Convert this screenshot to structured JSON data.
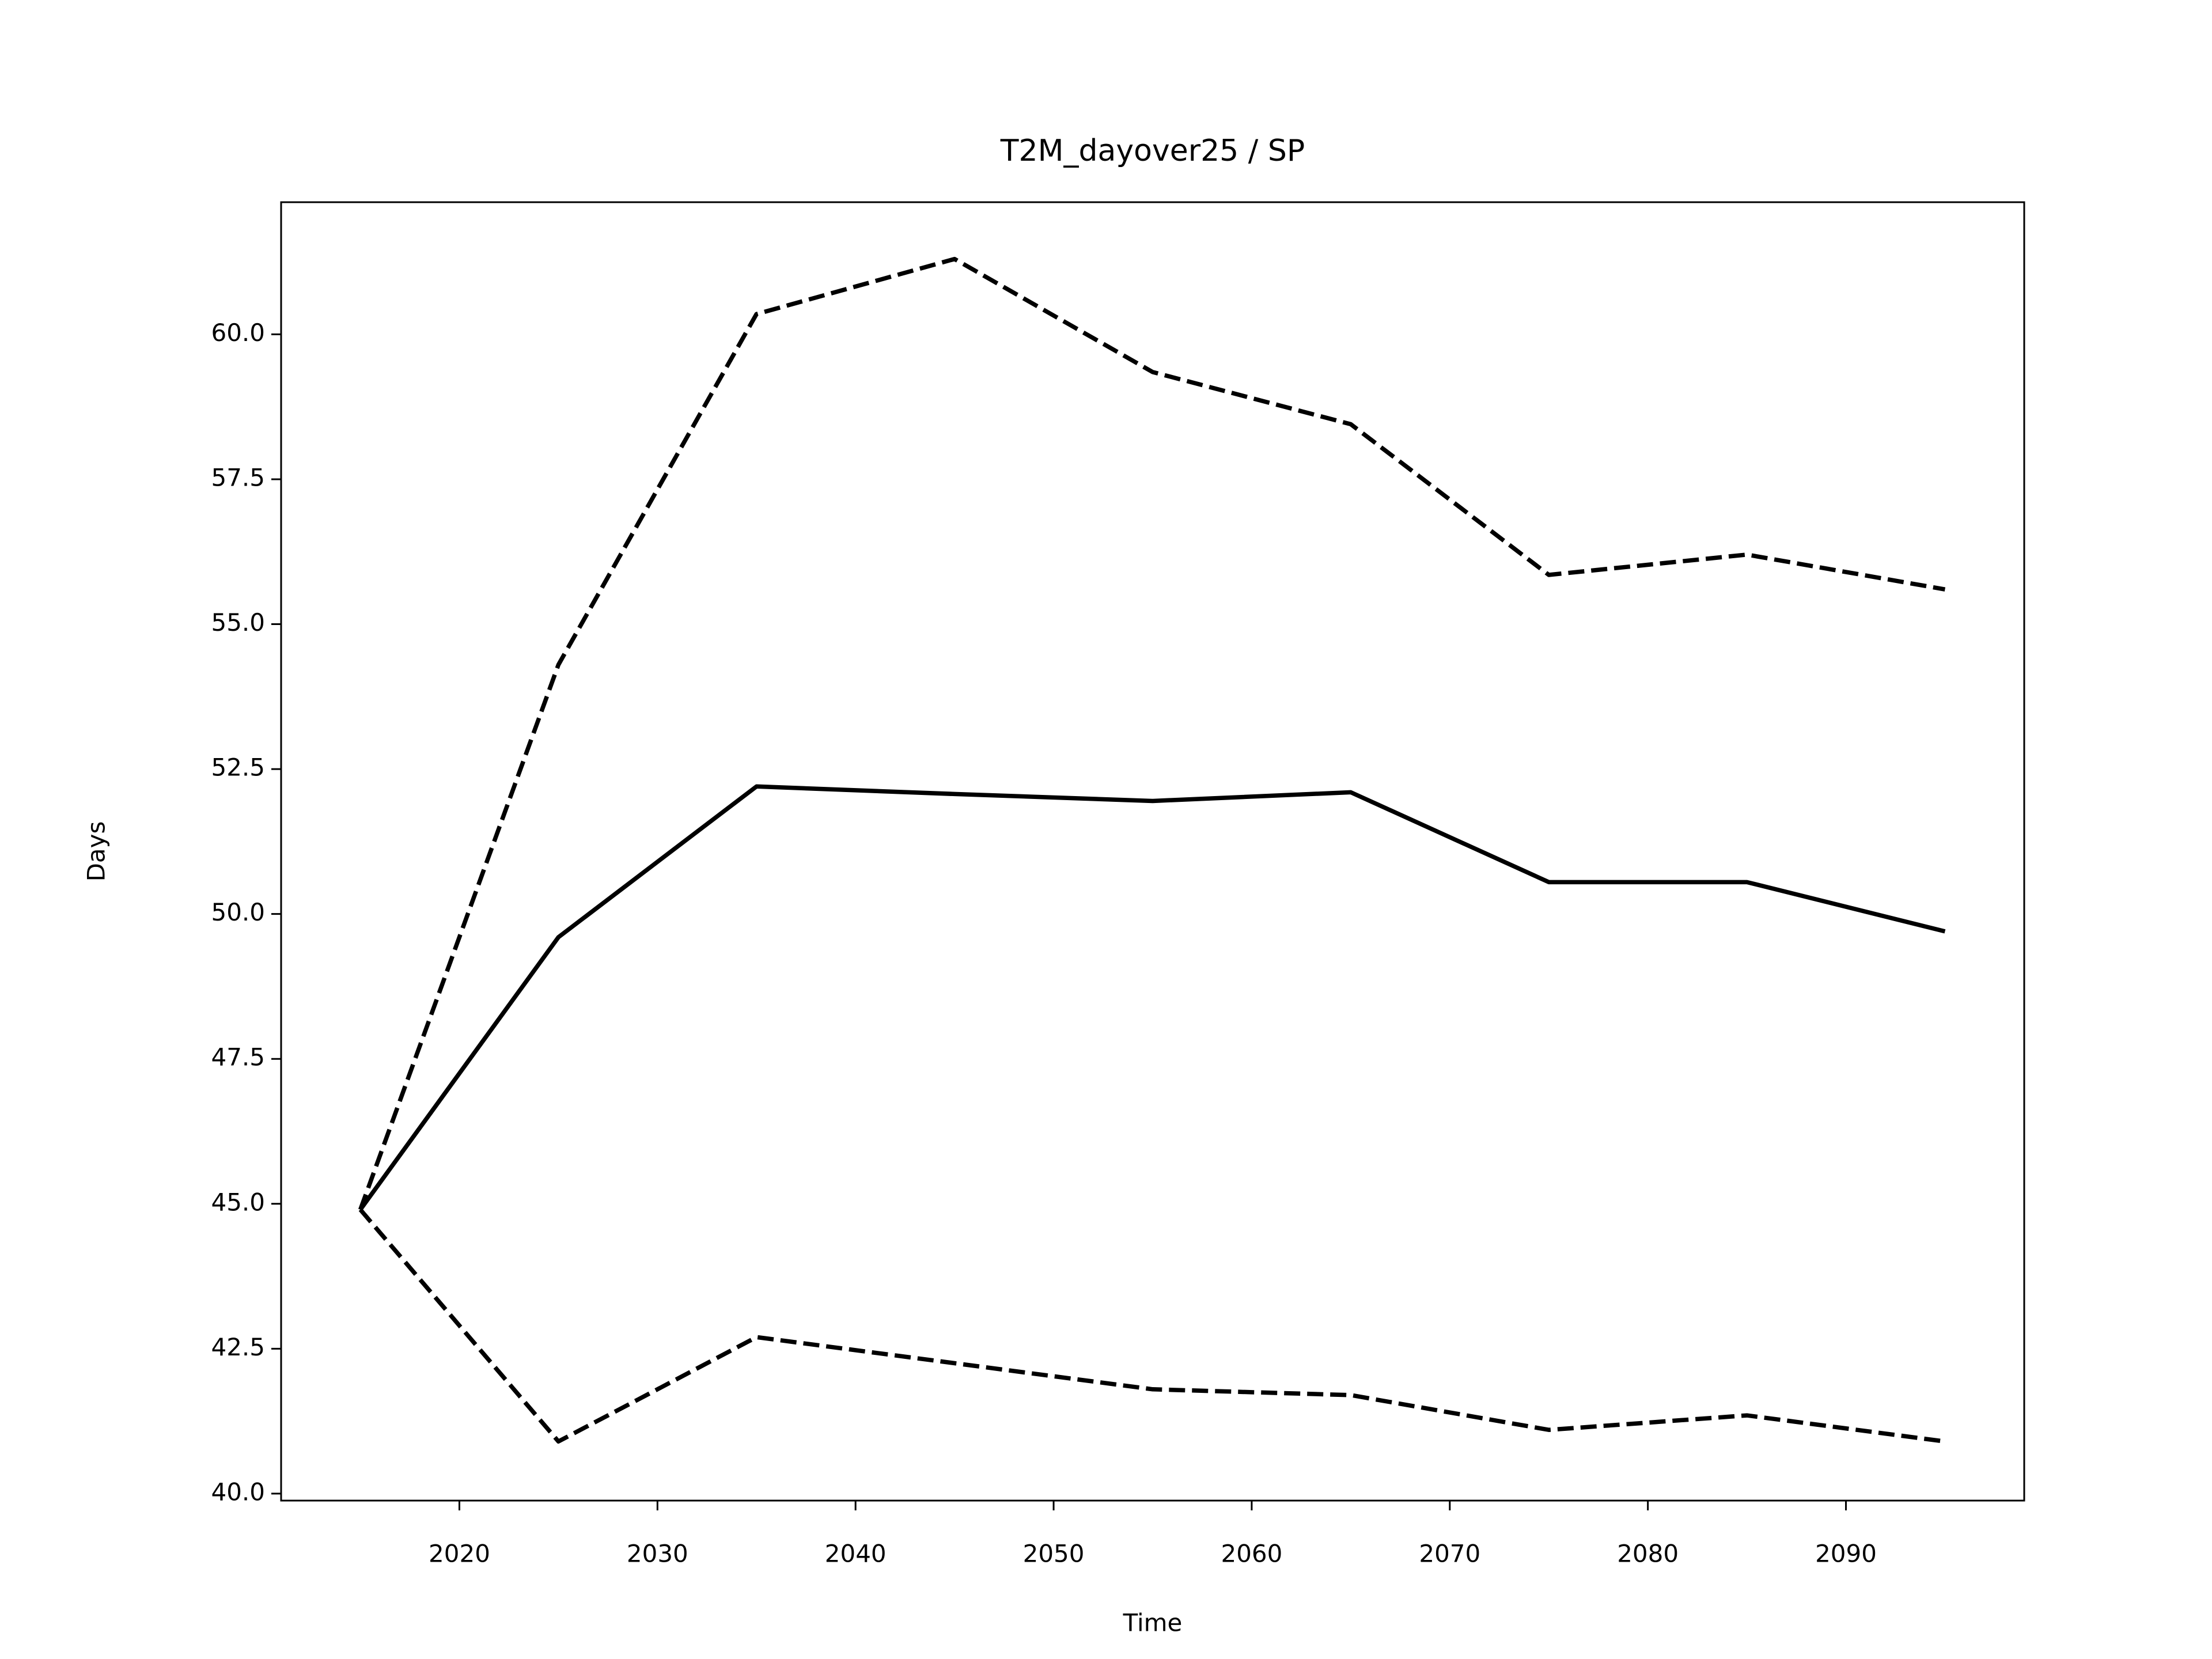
{
  "chart_data": {
    "type": "line",
    "title": "T2M_dayover25 / SP",
    "xlabel": "Time",
    "ylabel": "Days",
    "x": [
      2015,
      2025,
      2035,
      2045,
      2055,
      2065,
      2075,
      2085,
      2095
    ],
    "series": [
      {
        "color": "#000000",
        "linestyle": "solid",
        "values": [
          44.9,
          49.6,
          52.2,
          52.07,
          51.95,
          52.1,
          50.55,
          50.55,
          49.7
        ]
      },
      {
        "color": "#000000",
        "linestyle": "dashed",
        "values": [
          44.9,
          54.3,
          60.35,
          61.3,
          59.35,
          58.45,
          55.85,
          56.2,
          55.6
        ]
      },
      {
        "color": "#000000",
        "linestyle": "dashed",
        "values": [
          44.9,
          40.9,
          42.7,
          42.25,
          41.8,
          41.7,
          41.1,
          41.35,
          40.9
        ]
      }
    ],
    "xlim": [
      2011,
      2099
    ],
    "xticks": [
      2020,
      2030,
      2040,
      2050,
      2060,
      2070,
      2080,
      2090
    ],
    "ylim": [
      39.88,
      62.28
    ],
    "yticks": [
      {
        "value": 40,
        "label": "40.0"
      },
      {
        "value": 42.5,
        "label": "42.5"
      },
      {
        "value": 45,
        "label": "45.0"
      },
      {
        "value": 47.5,
        "label": "47.5"
      },
      {
        "value": 50,
        "label": "50.0"
      },
      {
        "value": 52.5,
        "label": "52.5"
      },
      {
        "value": 55,
        "label": "55.0"
      },
      {
        "value": 57.5,
        "label": "57.5"
      },
      {
        "value": 60,
        "label": "60.0"
      }
    ],
    "grid": false
  }
}
